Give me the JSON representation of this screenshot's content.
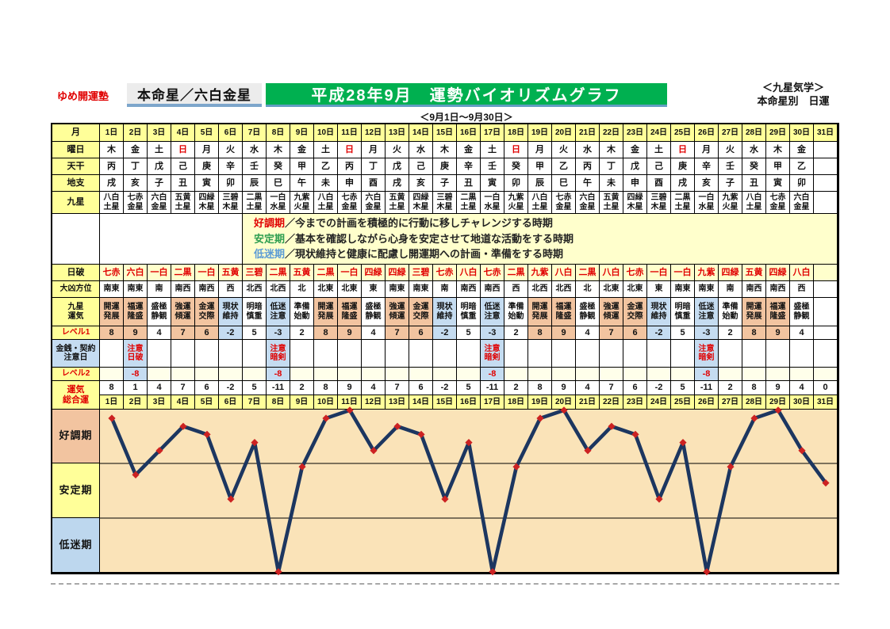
{
  "header": {
    "brand": "ゆめ開運塾",
    "subject": "本命星／六白金星",
    "title": "平成28年9月　運勢バイオリズムグラフ",
    "date_range": "＜9月1日～9月30日＞",
    "right_line1": "＜九星気学＞",
    "right_line2": "本命星別　日運"
  },
  "legend": [
    {
      "label": "好調期",
      "color": "#e00000",
      "text": "／今までの計画を積極的に行動に移しチャレンジする時期"
    },
    {
      "label": "安定期",
      "color": "#2e9e50",
      "text": "／基本を確認しながら心身を安定させて地道な活動をする時期"
    },
    {
      "label": "低迷期",
      "color": "#5b9bd5",
      "text": "／現状維持と健康に配慮し開運期への計画・準備をする時期"
    }
  ],
  "table": {
    "row_headers": {
      "month": "月",
      "weekday": "曜日",
      "tenkan": "天干",
      "chishi": "地支",
      "kyusei": "九星",
      "nippa": "日破",
      "daikyo": "大凶方位",
      "unki": "九星\n運気",
      "level1": "レベル1",
      "caution": "金銭・契約\n注意日",
      "level2": "レベル2",
      "total": "運気\n総合運"
    },
    "days": [
      "1日",
      "2日",
      "3日",
      "4日",
      "5日",
      "6日",
      "7日",
      "8日",
      "9日",
      "10日",
      "11日",
      "12日",
      "13日",
      "14日",
      "15日",
      "16日",
      "17日",
      "18日",
      "19日",
      "20日",
      "21日",
      "22日",
      "23日",
      "24日",
      "25日",
      "26日",
      "27日",
      "28日",
      "29日",
      "30日",
      "31日"
    ],
    "weekday": [
      "木",
      "金",
      "土",
      "日",
      "月",
      "火",
      "水",
      "木",
      "金",
      "土",
      "日",
      "月",
      "火",
      "水",
      "木",
      "金",
      "土",
      "日",
      "月",
      "火",
      "水",
      "木",
      "金",
      "土",
      "日",
      "月",
      "火",
      "水",
      "木",
      "金",
      ""
    ],
    "tenkan": [
      "丙",
      "丁",
      "戊",
      "己",
      "庚",
      "辛",
      "壬",
      "癸",
      "甲",
      "乙",
      "丙",
      "丁",
      "戊",
      "己",
      "庚",
      "辛",
      "壬",
      "癸",
      "甲",
      "乙",
      "丙",
      "丁",
      "戊",
      "己",
      "庚",
      "辛",
      "壬",
      "癸",
      "甲",
      "乙",
      ""
    ],
    "chishi": [
      "戌",
      "亥",
      "子",
      "丑",
      "寅",
      "卯",
      "辰",
      "巳",
      "午",
      "未",
      "申",
      "酉",
      "戌",
      "亥",
      "子",
      "丑",
      "寅",
      "卯",
      "辰",
      "巳",
      "午",
      "未",
      "申",
      "酉",
      "戌",
      "亥",
      "子",
      "丑",
      "寅",
      "卯",
      ""
    ],
    "kyusei": [
      "八白\n土星",
      "七赤\n金星",
      "六白\n金星",
      "五黄\n土星",
      "四緑\n木星",
      "三碧\n木星",
      "二黒\n土星",
      "一白\n水星",
      "九紫\n火星",
      "八白\n土星",
      "七赤\n金星",
      "六白\n金星",
      "五黄\n土星",
      "四緑\n木星",
      "三碧\n木星",
      "二黒\n土星",
      "一白\n水星",
      "九紫\n火星",
      "八白\n土星",
      "七赤\n金星",
      "六白\n金星",
      "五黄\n土星",
      "四緑\n木星",
      "三碧\n木星",
      "二黒\n土星",
      "一白\n水星",
      "九紫\n火星",
      "八白\n土星",
      "七赤\n金星",
      "六白\n金星",
      ""
    ],
    "nippa": [
      "七赤",
      "六白",
      "一白",
      "二黒",
      "一白",
      "五黄",
      "三碧",
      "二黒",
      "五黄",
      "二黒",
      "一白",
      "四緑",
      "四緑",
      "三碧",
      "七赤",
      "八白",
      "七赤",
      "二黒",
      "九紫",
      "八白",
      "二黒",
      "八白",
      "七赤",
      "一白",
      "一白",
      "九紫",
      "四緑",
      "五黄",
      "四緑",
      "八白",
      ""
    ],
    "daikyo": [
      "南東",
      "南東",
      "南",
      "南西",
      "南西",
      "西",
      "北西",
      "北西",
      "北",
      "北東",
      "北東",
      "東",
      "南東",
      "南東",
      "南",
      "南西",
      "南西",
      "西",
      "北西",
      "北西",
      "北",
      "北東",
      "北東",
      "東",
      "南東",
      "南東",
      "南",
      "南西",
      "南西",
      "西",
      ""
    ],
    "unki": [
      "開運\n発展",
      "福運\n隆盛",
      "盛極\n静観",
      "強運\n傾運",
      "金運\n交際",
      "現状\n維持",
      "明暗\n慎重",
      "低迷\n注意",
      "準備\n始動",
      "開運\n発展",
      "福運\n隆盛",
      "盛極\n静観",
      "強運\n傾運",
      "金運\n交際",
      "現状\n維持",
      "明暗\n慎重",
      "低迷\n注意",
      "準備\n始動",
      "開運\n発展",
      "福運\n隆盛",
      "盛極\n静観",
      "強運\n傾運",
      "金運\n交際",
      "現状\n維持",
      "明暗\n慎重",
      "低迷\n注意",
      "準備\n始動",
      "開運\n発展",
      "福運\n隆盛",
      "盛極\n静観",
      ""
    ],
    "level1": [
      "8",
      "9",
      "4",
      "7",
      "6",
      "-2",
      "5",
      "-3",
      "2",
      "8",
      "9",
      "4",
      "7",
      "6",
      "-2",
      "5",
      "-3",
      "2",
      "8",
      "9",
      "4",
      "7",
      "6",
      "-2",
      "5",
      "-3",
      "2",
      "8",
      "9",
      "4",
      ""
    ],
    "caution": [
      "",
      "注意\n日破",
      "",
      "",
      "",
      "",
      "",
      "注意\n暗剣",
      "",
      "",
      "",
      "",
      "",
      "",
      "",
      "",
      "注意\n暗剣",
      "",
      "",
      "",
      "",
      "",
      "",
      "",
      "",
      "注意\n暗剣",
      "",
      "",
      "",
      "",
      ""
    ],
    "level2": [
      "",
      "-8",
      "",
      "",
      "",
      "",
      "",
      "-8",
      "",
      "",
      "",
      "",
      "",
      "",
      "",
      "",
      "-8",
      "",
      "",
      "",
      "",
      "",
      "",
      "",
      "",
      "-8",
      "",
      "",
      "",
      "",
      ""
    ],
    "total": [
      "8",
      "1",
      "4",
      "7",
      "6",
      "-2",
      "5",
      "-11",
      "2",
      "8",
      "9",
      "4",
      "7",
      "6",
      "-2",
      "5",
      "-11",
      "2",
      "8",
      "9",
      "4",
      "7",
      "6",
      "-2",
      "5",
      "-11",
      "2",
      "8",
      "9",
      "4",
      "0"
    ]
  },
  "tone_map": {
    "開運発展": "warm",
    "福運隆盛": "warm",
    "盛極静観": "plain",
    "強運傾運": "warm",
    "金運交際": "warm",
    "現状維持": "cool",
    "明暗慎重": "plain",
    "低迷注意": "cool",
    "準備始動": "plain"
  },
  "colors": {
    "banner_green": "#00b050",
    "accent_red": "#e00000",
    "warm": "#f2c4a0",
    "cool": "#c5dcf1",
    "yellow": "#ffff99",
    "cream": "#ffffcc",
    "wheat": "#fae3b8",
    "line_navy": "#1c3660",
    "marker_red": "#cc2222",
    "band_good": "#f2c4a0",
    "band_stable": "#ffff99",
    "band_low": "#bdd7ee"
  },
  "chart_data": {
    "type": "line",
    "title": "平成28年9月　運勢バイオリズムグラフ",
    "x": [
      1,
      2,
      3,
      4,
      5,
      6,
      7,
      8,
      9,
      10,
      11,
      12,
      13,
      14,
      15,
      16,
      17,
      18,
      19,
      20,
      21,
      22,
      23,
      24,
      25,
      26,
      27,
      28,
      29,
      30,
      31
    ],
    "x_tick_labels": [
      "1日",
      "2日",
      "3日",
      "4日",
      "5日",
      "6日",
      "7日",
      "8日",
      "9日",
      "10日",
      "11日",
      "12日",
      "13日",
      "14日",
      "15日",
      "16日",
      "17日",
      "18日",
      "19日",
      "20日",
      "21日",
      "22日",
      "23日",
      "24日",
      "25日",
      "26日",
      "27日",
      "28日",
      "29日",
      "30日",
      "31日"
    ],
    "series": [
      {
        "name": "運気総合運",
        "values": [
          8,
          1,
          4,
          7,
          6,
          -2,
          5,
          -11,
          2,
          8,
          9,
          4,
          7,
          6,
          -2,
          5,
          -11,
          2,
          8,
          9,
          4,
          7,
          6,
          -2,
          5,
          -11,
          2,
          8,
          9,
          4,
          0
        ]
      }
    ],
    "ylim": [
      -11.1,
      9.1
    ],
    "bands": [
      {
        "label": "好調期",
        "approx_range": [
          2.5,
          9.1
        ]
      },
      {
        "label": "安定期",
        "approx_range": [
          -4.3,
          2.5
        ]
      },
      {
        "label": "低迷期",
        "approx_range": [
          -11.1,
          -4.3
        ]
      }
    ],
    "grid": "two horizontal band-boundary lines only",
    "legend_position": "left row labels"
  },
  "graph_labels": [
    "好調期",
    "安定期",
    "低迷期"
  ]
}
